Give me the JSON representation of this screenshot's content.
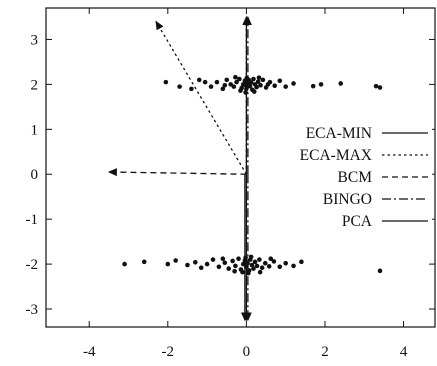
{
  "chart_data": {
    "type": "scatter",
    "title": "",
    "xlabel": "",
    "ylabel": "",
    "xlim": [
      -5.1,
      4.8
    ],
    "ylim": [
      -3.4,
      3.7
    ],
    "xticks": [
      -4,
      -2,
      0,
      2,
      4
    ],
    "yticks": [
      3,
      2,
      1,
      0,
      -1,
      -2,
      -3
    ],
    "xtick_labels": [
      "-4",
      "-2",
      "0",
      "2",
      "4"
    ],
    "ytick_labels": [
      "3",
      "2",
      "1",
      "0",
      "-1",
      "-2",
      "-3"
    ],
    "grid": false,
    "legend_position": "right",
    "colors": {
      "ink": "#111111",
      "background": "#ffffff"
    },
    "clusters": [
      {
        "center": [
          0.0,
          2.0
        ],
        "points": [
          [
            -2.05,
            2.05
          ],
          [
            -1.7,
            1.95
          ],
          [
            -1.4,
            1.9
          ],
          [
            -1.2,
            2.1
          ],
          [
            -1.05,
            2.05
          ],
          [
            -0.9,
            1.95
          ],
          [
            -0.75,
            2.05
          ],
          [
            -0.6,
            1.9
          ],
          [
            -0.5,
            2.1
          ],
          [
            -0.4,
            2.0
          ],
          [
            -0.32,
            1.95
          ],
          [
            -0.25,
            2.05
          ],
          [
            -0.18,
            2.12
          ],
          [
            -0.12,
            1.92
          ],
          [
            -0.08,
            2.0
          ],
          [
            -0.04,
            2.08
          ],
          [
            0.0,
            1.9
          ],
          [
            0.03,
            2.02
          ],
          [
            0.06,
            2.1
          ],
          [
            0.09,
            1.96
          ],
          [
            0.12,
            2.04
          ],
          [
            0.15,
            1.88
          ],
          [
            0.18,
            2.12
          ],
          [
            0.22,
            2.0
          ],
          [
            0.26,
            1.94
          ],
          [
            0.3,
            2.06
          ],
          [
            0.36,
            1.98
          ],
          [
            0.42,
            2.1
          ],
          [
            0.5,
            1.93
          ],
          [
            0.6,
            2.05
          ],
          [
            0.72,
            1.97
          ],
          [
            0.85,
            2.08
          ],
          [
            1.0,
            1.95
          ],
          [
            1.2,
            2.02
          ],
          [
            1.7,
            1.96
          ],
          [
            1.9,
            2.0
          ],
          [
            2.4,
            2.02
          ],
          [
            3.3,
            1.96
          ],
          [
            3.4,
            1.93
          ],
          [
            -0.02,
            1.98
          ],
          [
            0.01,
            2.14
          ],
          [
            -0.15,
            1.86
          ],
          [
            0.2,
            1.84
          ],
          [
            -0.28,
            2.16
          ],
          [
            0.32,
            2.15
          ],
          [
            -0.55,
            1.98
          ],
          [
            0.55,
            2.0
          ],
          [
            -0.02,
            1.82
          ]
        ]
      },
      {
        "center": [
          0.0,
          -2.0
        ],
        "points": [
          [
            -3.1,
            -2.0
          ],
          [
            -2.6,
            -1.95
          ],
          [
            -2.0,
            -2.0
          ],
          [
            -1.8,
            -1.92
          ],
          [
            -1.5,
            -2.02
          ],
          [
            -1.3,
            -1.96
          ],
          [
            -1.15,
            -2.08
          ],
          [
            -1.0,
            -2.0
          ],
          [
            -0.85,
            -1.9
          ],
          [
            -0.7,
            -2.06
          ],
          [
            -0.55,
            -1.97
          ],
          [
            -0.45,
            -2.1
          ],
          [
            -0.35,
            -1.93
          ],
          [
            -0.28,
            -2.04
          ],
          [
            -0.2,
            -1.88
          ],
          [
            -0.14,
            -2.12
          ],
          [
            -0.08,
            -2.0
          ],
          [
            -0.04,
            -1.92
          ],
          [
            0.0,
            -2.06
          ],
          [
            0.03,
            -1.98
          ],
          [
            0.07,
            -2.14
          ],
          [
            0.1,
            -1.9
          ],
          [
            0.14,
            -2.02
          ],
          [
            0.18,
            -2.1
          ],
          [
            0.22,
            -1.95
          ],
          [
            0.27,
            -2.04
          ],
          [
            0.33,
            -1.9
          ],
          [
            0.4,
            -2.08
          ],
          [
            0.48,
            -1.98
          ],
          [
            0.58,
            -2.05
          ],
          [
            0.7,
            -1.94
          ],
          [
            0.85,
            -2.06
          ],
          [
            1.0,
            -1.98
          ],
          [
            1.2,
            -2.04
          ],
          [
            1.4,
            -1.95
          ],
          [
            3.4,
            -2.15
          ],
          [
            -0.1,
            -2.18
          ],
          [
            0.12,
            -1.84
          ],
          [
            -0.3,
            -2.16
          ],
          [
            0.35,
            -2.18
          ],
          [
            -0.6,
            -1.88
          ],
          [
            0.62,
            -1.88
          ],
          [
            -0.02,
            -1.86
          ],
          [
            0.05,
            -2.2
          ]
        ]
      }
    ],
    "series": [
      {
        "name": "ECA-MIN",
        "dash": "solid",
        "arrows": [
          [
            0.0,
            3.5
          ],
          [
            0.0,
            -3.25
          ]
        ]
      },
      {
        "name": "ECA-MAX",
        "dash": "dotted",
        "arrows": [
          [
            -2.3,
            3.4
          ],
          [
            0.0,
            3.5
          ]
        ]
      },
      {
        "name": "BCM",
        "dash": "dashed",
        "arrows": [
          [
            -3.5,
            0.05
          ]
        ]
      },
      {
        "name": "BINGO",
        "dash": "dashdot",
        "arrows": [
          [
            0.0,
            3.5
          ],
          [
            0.0,
            -3.25
          ]
        ]
      },
      {
        "name": "PCA",
        "dash": "solid",
        "arrows": [
          [
            0.0,
            -3.25
          ]
        ]
      }
    ]
  }
}
